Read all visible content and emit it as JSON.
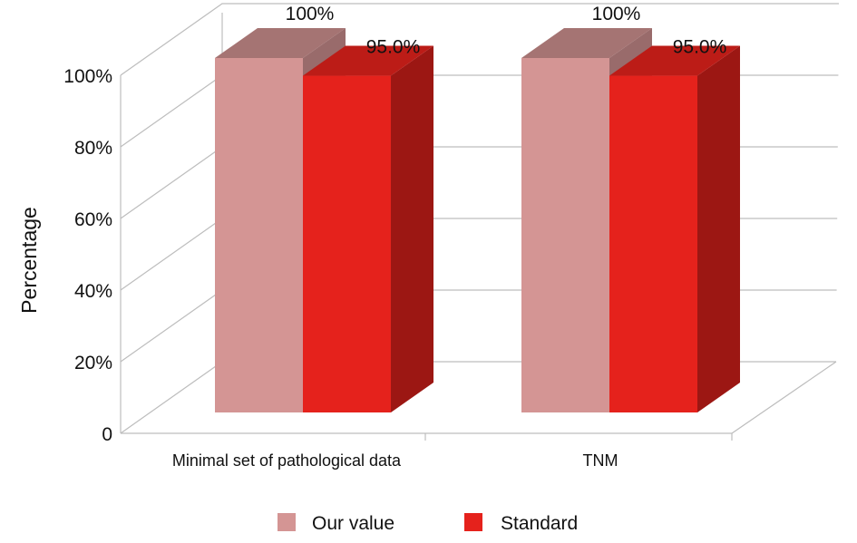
{
  "chart_data": {
    "type": "bar",
    "categories": [
      "Minimal set of pathological data",
      "TNM"
    ],
    "series": [
      {
        "name": "Our value",
        "values": [
          100,
          100
        ],
        "labels": [
          "100%",
          "100%"
        ],
        "color": "#d49594"
      },
      {
        "name": "Standard",
        "values": [
          95.0,
          95.0
        ],
        "labels": [
          "95.0%",
          "95.0%"
        ],
        "color": "#e5221c"
      }
    ],
    "ylabel": "Percentage",
    "xlabel": "",
    "ylim": [
      0,
      100
    ],
    "yticks": [
      {
        "value": 0,
        "label": "0"
      },
      {
        "value": 20,
        "label": "20%"
      },
      {
        "value": 40,
        "label": "40%"
      },
      {
        "value": 60,
        "label": "60%"
      },
      {
        "value": 80,
        "label": "80%"
      },
      {
        "value": 100,
        "label": "100%"
      }
    ],
    "grid": true,
    "style": "3d",
    "legend_position": "bottom"
  }
}
